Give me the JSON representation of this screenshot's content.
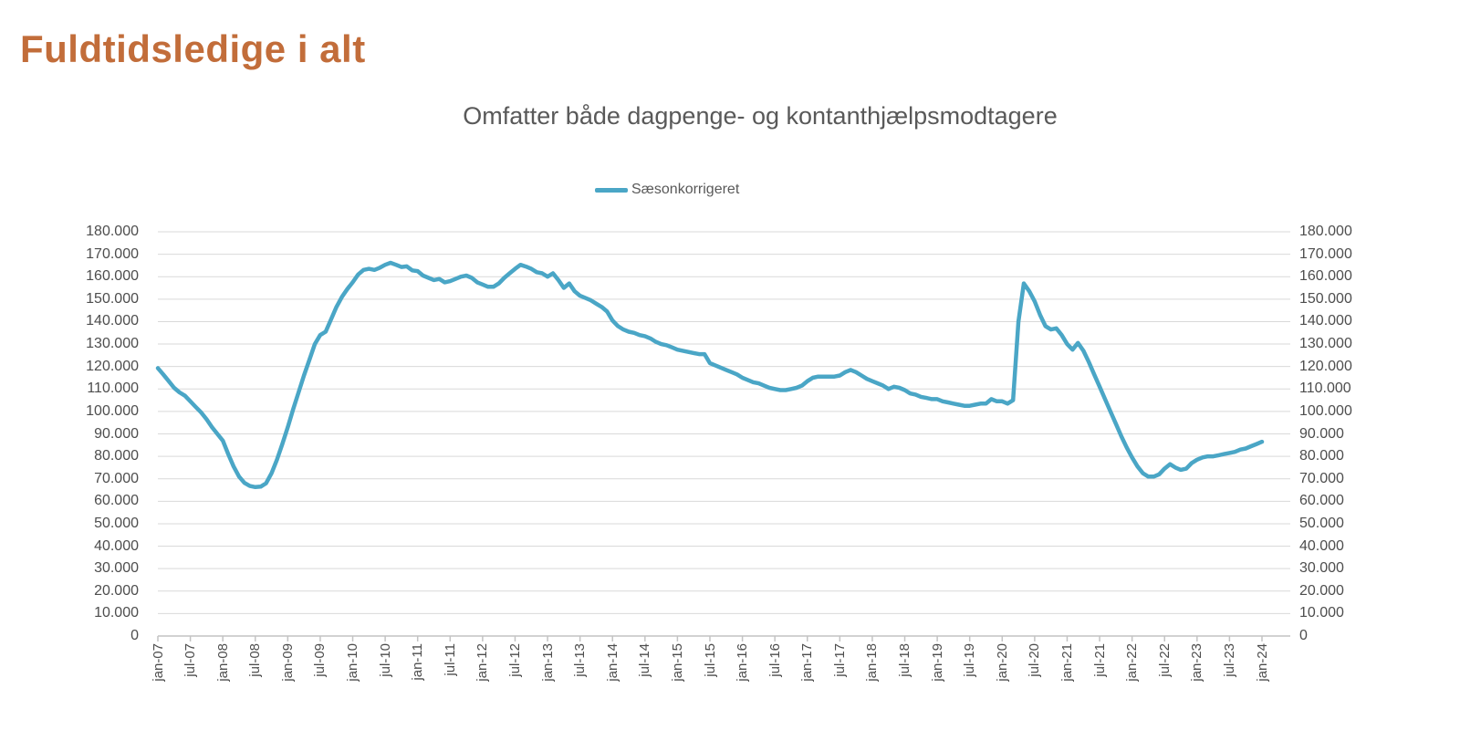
{
  "header": {
    "title": "Fuldtidsledige i alt",
    "title_color": "#c26d3a"
  },
  "chart": {
    "subtitle": "Omfatter både dagpenge- og kontanthjælpsmodtagere",
    "legend": {
      "label": "Sæsonkorrigeret",
      "color": "#4aa6c6"
    }
  },
  "chart_data": {
    "type": "line",
    "title": "Omfatter både dagpenge- og kontanthjælpsmodtagere",
    "legend_entries": [
      "Sæsonkorrigeret"
    ],
    "legend_position": "top-center",
    "grid": "horizontal",
    "line_color": "#4aa6c6",
    "gridline_color": "#d9d9d9",
    "axis_line_color": "#c3c3c3",
    "ylim": [
      0,
      180000
    ],
    "y_tick_labels": [
      "180.000",
      "170.000",
      "160.000",
      "150.000",
      "140.000",
      "130.000",
      "120.000",
      "110.000",
      "100.000",
      "90.000",
      "80.000",
      "70.000",
      "60.000",
      "50.000",
      "40.000",
      "30.000",
      "20.000",
      "10.000",
      "0"
    ],
    "x_tick_labels": [
      "jan-07",
      "jul-07",
      "jan-08",
      "jul-08",
      "jan-09",
      "jul-09",
      "jan-10",
      "jul-10",
      "jan-11",
      "jul-11",
      "jan-12",
      "jul-12",
      "jan-13",
      "jul-13",
      "jan-14",
      "jul-14",
      "jan-15",
      "jul-15",
      "jan-16",
      "jul-16",
      "jan-17",
      "jul-17",
      "jan-18",
      "jul-18",
      "jan-19",
      "jul-19",
      "jan-20",
      "jul-20",
      "jan-21",
      "jul-21",
      "jan-22",
      "jul-22",
      "jan-23",
      "jul-23",
      "jan-24"
    ],
    "x_range": "monthly values from jan-07 to jan-24",
    "series": [
      {
        "name": "Sæsonkorrigeret",
        "values": [
          119300,
          116500,
          113500,
          110500,
          108500,
          107000,
          104500,
          102000,
          99500,
          96500,
          93000,
          90000,
          87000,
          81000,
          75500,
          71000,
          68200,
          66800,
          66300,
          66500,
          68000,
          72500,
          78500,
          85500,
          93000,
          101000,
          108500,
          116000,
          123000,
          130000,
          134000,
          135500,
          141000,
          146500,
          151000,
          154500,
          157500,
          161000,
          163000,
          163500,
          163000,
          164000,
          165300,
          166200,
          165300,
          164300,
          164600,
          162800,
          162500,
          160500,
          159500,
          158500,
          159000,
          157500,
          158000,
          159000,
          160000,
          160500,
          159500,
          157500,
          156500,
          155500,
          155500,
          157000,
          159500,
          161500,
          163500,
          165300,
          164500,
          163500,
          162000,
          161500,
          160000,
          161500,
          158500,
          155000,
          157000,
          153500,
          151500,
          150500,
          149500,
          148000,
          146500,
          144500,
          140500,
          138000,
          136500,
          135500,
          135000,
          134000,
          133500,
          132500,
          131000,
          130000,
          129500,
          128500,
          127500,
          127000,
          126500,
          126000,
          125500,
          125500,
          121500,
          120500,
          119500,
          118500,
          117500,
          116500,
          115000,
          114000,
          113000,
          112500,
          111500,
          110500,
          110000,
          109500,
          109500,
          110000,
          110500,
          111500,
          113500,
          115000,
          115500,
          115500,
          115500,
          115500,
          116000,
          117500,
          118500,
          117500,
          116000,
          114500,
          113500,
          112500,
          111500,
          110000,
          111000,
          110500,
          109500,
          108000,
          107500,
          106500,
          106000,
          105500,
          105500,
          104500,
          104000,
          103500,
          103000,
          102500,
          102500,
          103000,
          103500,
          103500,
          105500,
          104500,
          104500,
          103500,
          105000,
          140000,
          157000,
          153500,
          149000,
          143000,
          138000,
          136500,
          137000,
          134000,
          130000,
          127500,
          130500,
          127000,
          122000,
          116500,
          111000,
          105500,
          100000,
          94500,
          89000,
          84000,
          79500,
          75500,
          72500,
          71000,
          71000,
          72000,
          74500,
          76500,
          75000,
          74000,
          74500,
          77000,
          78500,
          79500,
          80000,
          80000,
          80500,
          81000,
          81500,
          82000,
          83000,
          83500,
          84500,
          85500,
          86500
        ]
      }
    ]
  }
}
